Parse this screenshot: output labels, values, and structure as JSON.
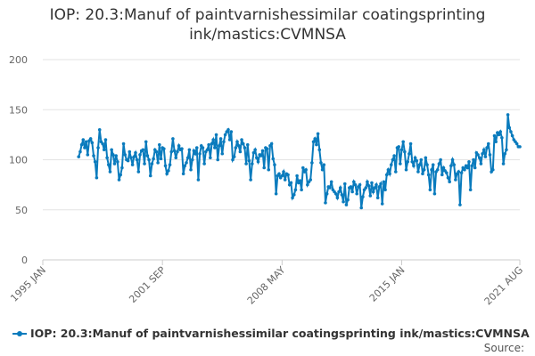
{
  "chart_data": {
    "type": "line",
    "title": "IOP: 20.3:Manuf of paintvarnishessimilar coatingsprinting ink/mastics:CVMNSA",
    "source": "Source:",
    "categories": [
      "1995 JAN",
      null,
      null,
      null,
      null,
      null,
      null,
      null,
      null,
      null,
      null,
      null,
      null,
      null,
      null,
      null,
      null,
      null,
      null,
      null,
      null,
      null,
      null,
      null,
      null,
      null,
      null,
      null,
      null,
      null,
      null,
      null,
      null,
      null,
      null,
      null,
      null,
      null,
      null,
      null,
      null,
      null,
      null,
      null,
      null,
      null,
      null,
      null,
      null,
      null,
      null,
      null,
      null,
      null,
      null,
      null,
      null,
      null,
      null,
      null,
      null,
      null,
      null,
      null,
      null,
      null,
      null,
      null,
      null,
      null,
      null,
      null,
      null,
      null,
      null,
      null,
      null,
      null,
      null,
      null,
      "2001 SEP",
      null,
      null,
      null,
      null,
      null,
      null,
      null,
      null,
      null,
      null,
      null,
      null,
      null,
      null,
      null,
      null,
      null,
      null,
      null,
      null,
      null,
      null,
      null,
      null,
      null,
      null,
      null,
      null,
      null,
      null,
      null,
      null,
      null,
      null,
      null,
      null,
      null,
      null,
      null,
      null,
      null,
      null,
      null,
      null,
      null,
      null,
      null,
      null,
      null,
      null,
      null,
      null,
      null,
      null,
      null,
      null,
      null,
      null,
      null,
      null,
      null,
      null,
      null,
      null,
      null,
      null,
      null,
      null,
      null,
      null,
      null,
      null,
      null,
      null,
      null,
      null,
      null,
      null,
      null,
      "2008 MAY",
      null,
      null,
      null,
      null,
      null,
      null,
      null,
      null,
      null,
      null,
      null,
      null,
      null,
      null,
      null,
      null,
      null,
      null,
      null,
      null,
      null,
      null,
      null,
      null,
      null,
      null,
      null,
      null,
      null,
      null,
      null,
      null,
      null,
      null,
      null,
      null,
      null,
      null,
      null,
      null,
      null,
      null,
      null,
      null,
      null,
      null,
      null,
      null,
      null,
      null,
      null,
      null,
      null,
      null,
      null,
      null,
      null,
      null,
      null,
      null,
      null,
      null,
      null,
      null,
      null,
      null,
      null,
      null,
      null,
      null,
      null,
      null,
      null,
      null,
      null,
      null,
      null,
      null,
      null,
      "2015 JAN",
      null,
      null,
      null,
      null,
      null,
      null,
      null,
      null,
      null,
      null,
      null,
      null,
      null,
      null,
      null,
      null,
      null,
      null,
      null,
      null,
      null,
      null,
      null,
      null,
      null,
      null,
      null,
      null,
      null,
      null,
      null,
      null,
      null,
      null,
      null,
      null,
      null,
      null,
      null,
      null,
      null,
      null,
      null,
      null,
      null,
      null,
      null,
      null,
      null,
      null,
      null,
      null,
      null,
      null,
      null,
      null,
      null,
      null,
      null,
      null,
      null,
      null,
      null,
      null,
      null,
      null,
      null,
      null,
      null,
      null,
      null,
      null,
      null,
      null,
      null,
      null,
      null,
      null,
      "2021 AUG"
    ],
    "series": [
      {
        "name": "IOP: 20.3:Manuf of paintvarnishessimilar coatingsprinting ink/mastics:CVMNSA",
        "color": "#0a7bbd",
        "values": [
          null,
          null,
          null,
          null,
          null,
          null,
          null,
          null,
          null,
          null,
          null,
          null,
          null,
          null,
          null,
          null,
          null,
          null,
          null,
          null,
          null,
          null,
          null,
          null,
          103,
          108,
          115,
          120,
          112,
          118,
          105,
          119,
          121,
          117,
          104,
          98,
          82,
          112,
          130,
          118,
          116,
          110,
          120,
          102,
          95,
          88,
          110,
          105,
          96,
          104,
          98,
          80,
          85,
          92,
          116,
          105,
          100,
          99,
          108,
          102,
          95,
          103,
          107,
          100,
          88,
          105,
          109,
          110,
          96,
          118,
          104,
          100,
          84,
          96,
          101,
          110,
          108,
          97,
          115,
          101,
          112,
          111,
          94,
          86,
          89,
          95,
          108,
          121,
          109,
          102,
          108,
          114,
          110,
          111,
          86,
          94,
          97,
          102,
          110,
          90,
          100,
          109,
          106,
          112,
          80,
          106,
          114,
          112,
          96,
          108,
          110,
          115,
          102,
          116,
          120,
          112,
          125,
          100,
          114,
          121,
          106,
          118,
          125,
          128,
          130,
          120,
          128,
          100,
          103,
          112,
          118,
          114,
          108,
          120,
          116,
          112,
          96,
          115,
          99,
          80,
          96,
          107,
          110,
          102,
          98,
          105,
          104,
          109,
          92,
          112,
          111,
          90,
          114,
          116,
          101,
          95,
          66,
          84,
          86,
          82,
          84,
          88,
          80,
          86,
          85,
          75,
          77,
          62,
          65,
          70,
          84,
          77,
          79,
          70,
          92,
          88,
          90,
          75,
          78,
          80,
          97,
          118,
          121,
          115,
          126,
          110,
          97,
          90,
          95,
          57,
          66,
          73,
          72,
          78,
          70,
          68,
          66,
          62,
          68,
          72,
          65,
          58,
          76,
          55,
          60,
          72,
          73,
          68,
          78,
          75,
          66,
          73,
          75,
          52,
          63,
          70,
          72,
          78,
          74,
          64,
          77,
          68,
          72,
          75,
          62,
          73,
          76,
          56,
          78,
          70,
          85,
          90,
          86,
          95,
          100,
          104,
          88,
          112,
          113,
          96,
          110,
          118,
          108,
          90,
          98,
          106,
          116,
          98,
          94,
          102,
          99,
          88,
          95,
          100,
          86,
          90,
          102,
          95,
          85,
          70,
          90,
          95,
          66,
          88,
          90,
          96,
          100,
          85,
          92,
          89,
          87,
          82,
          78,
          94,
          100,
          95,
          80,
          86,
          88,
          55,
          87,
          92,
          90,
          94,
          92,
          98,
          70,
          94,
          100,
          92,
          107,
          105,
          102,
          96,
          106,
          110,
          103,
          112,
          116,
          105,
          88,
          90,
          124,
          118,
          127,
          125,
          128,
          122,
          96,
          106,
          110,
          145,
          132,
          128,
          124,
          120,
          118,
          116,
          113,
          113
        ]
      }
    ],
    "ylim": [
      0,
      200
    ],
    "yticks": [
      0,
      50,
      100,
      150,
      200
    ],
    "grid": true,
    "legend": "bottom"
  }
}
